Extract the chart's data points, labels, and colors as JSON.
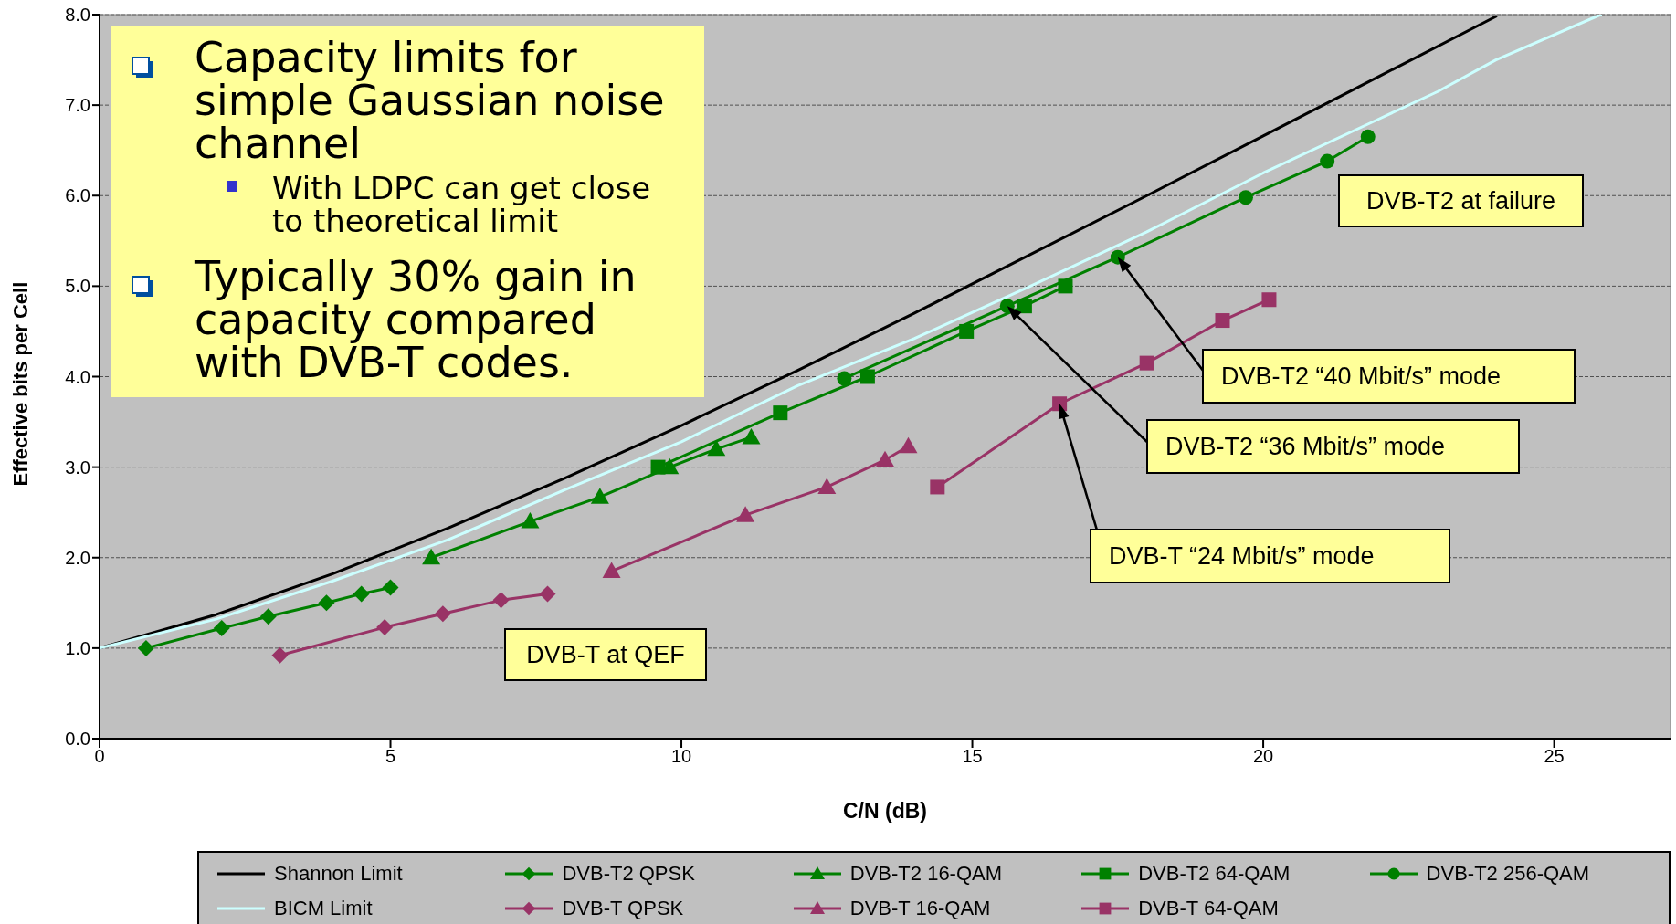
{
  "chart_data": {
    "type": "line",
    "xlabel": "C/N (dB)",
    "ylabel": "Effective bits per Cell",
    "xlim": [
      0,
      27
    ],
    "xticks": [
      0,
      5,
      10,
      15,
      20,
      25
    ],
    "ylim": [
      0,
      8
    ],
    "yticks": [
      {
        "value": 0,
        "label": "0.0"
      },
      {
        "value": 1,
        "label": "1.0"
      },
      {
        "value": 2,
        "label": "2.0"
      },
      {
        "value": 3,
        "label": "3.0"
      },
      {
        "value": 4,
        "label": "4.0"
      },
      {
        "value": 5,
        "label": "5.0"
      },
      {
        "value": 6,
        "label": "6.0"
      },
      {
        "value": 7,
        "label": "7.0"
      },
      {
        "value": 8,
        "label": "8.0"
      }
    ],
    "grid": "y",
    "legend": "bottom",
    "line_style": "solid",
    "series": [
      {
        "name": "Shannon Limit",
        "color": "#000000",
        "marker": "none",
        "x": [
          0,
          2,
          4,
          6,
          8,
          10,
          12,
          14,
          16,
          18,
          20,
          22,
          24
        ],
        "values": [
          1.0,
          1.37,
          1.82,
          2.33,
          2.88,
          3.46,
          4.07,
          4.7,
          5.35,
          6.0,
          6.66,
          7.32,
          7.98
        ]
      },
      {
        "name": "BICM Limit",
        "color": "#ccffff",
        "marker": "none",
        "x": [
          0,
          2,
          4,
          6,
          8,
          10,
          12,
          14,
          16,
          18,
          20,
          22,
          23,
          24,
          25.8
        ],
        "values": [
          1.0,
          1.32,
          1.74,
          2.2,
          2.75,
          3.28,
          3.9,
          4.42,
          5.0,
          5.6,
          6.25,
          6.85,
          7.15,
          7.5,
          8.0
        ]
      },
      {
        "name": "DVB-T2 QPSK",
        "color": "#008000",
        "marker": "diamond",
        "x": [
          0.8,
          2.1,
          2.9,
          3.9,
          4.5,
          5.0
        ],
        "values": [
          1.0,
          1.22,
          1.35,
          1.5,
          1.6,
          1.67
        ]
      },
      {
        "name": "DVB-T QPSK",
        "color": "#993366",
        "marker": "diamond",
        "x": [
          3.1,
          4.9,
          5.9,
          6.9,
          7.7
        ],
        "values": [
          0.92,
          1.23,
          1.38,
          1.53,
          1.6
        ]
      },
      {
        "name": "DVB-T2 16-QAM",
        "color": "#008000",
        "marker": "triangle",
        "x": [
          5.7,
          7.4,
          8.6,
          9.8,
          10.6,
          11.2
        ],
        "values": [
          2.0,
          2.4,
          2.67,
          3.0,
          3.2,
          3.33
        ]
      },
      {
        "name": "DVB-T 16-QAM",
        "color": "#993366",
        "marker": "triangle",
        "x": [
          8.8,
          11.1,
          12.5,
          13.5,
          13.9
        ],
        "values": [
          1.85,
          2.47,
          2.78,
          3.08,
          3.23
        ]
      },
      {
        "name": "DVB-T2 64-QAM",
        "color": "#008000",
        "marker": "square",
        "x": [
          9.6,
          11.7,
          13.2,
          14.9,
          15.9,
          16.6
        ],
        "values": [
          3.0,
          3.6,
          4.0,
          4.5,
          4.78,
          5.0
        ]
      },
      {
        "name": "DVB-T 64-QAM",
        "color": "#993366",
        "marker": "square",
        "x": [
          14.4,
          16.5,
          18.0,
          19.3,
          20.1
        ],
        "values": [
          2.78,
          3.7,
          4.15,
          4.62,
          4.85
        ]
      },
      {
        "name": "DVB-T2 256-QAM",
        "color": "#008000",
        "marker": "circle",
        "x": [
          12.8,
          15.6,
          17.5,
          19.7,
          21.1,
          21.8
        ],
        "values": [
          3.98,
          4.78,
          5.32,
          5.98,
          6.38,
          6.65
        ]
      }
    ],
    "annotations": [
      "Capacity limits for simple Gaussian noise channel",
      "With LDPC can get close to theoretical limit",
      "Typically 30% gain in capacity compared with DVB-T codes.",
      "DVB-T2 at failure",
      "DVB-T at QEF",
      "DVB-T2 “40 Mbit/s” mode",
      "DVB-T2 “36 Mbit/s” mode",
      "DVB-T “24 Mbit/s” mode"
    ]
  }
}
